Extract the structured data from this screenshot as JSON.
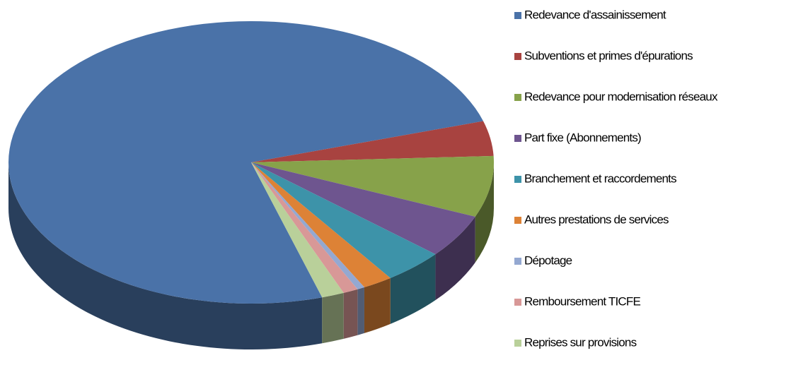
{
  "chart_data": {
    "type": "pie",
    "categories": [
      "Redevance d'assainissement",
      "Subventions et primes d'épurations",
      "Redevance pour modernisation réseaux",
      "Part fixe (Abonnements)",
      "Branchement et raccordements",
      "Autres prestations de services",
      "Dépotage",
      "Remboursement TICFE",
      "Reprises sur provisions"
    ],
    "values": [
      75,
      4,
      7,
      5,
      4,
      2,
      0.5,
      1,
      1.5
    ],
    "colors": [
      "#4a72a8",
      "#a84340",
      "#87a24a",
      "#6e558f",
      "#3d93a9",
      "#dd8236",
      "#94a8d1",
      "#d89897",
      "#b9d09a"
    ]
  }
}
